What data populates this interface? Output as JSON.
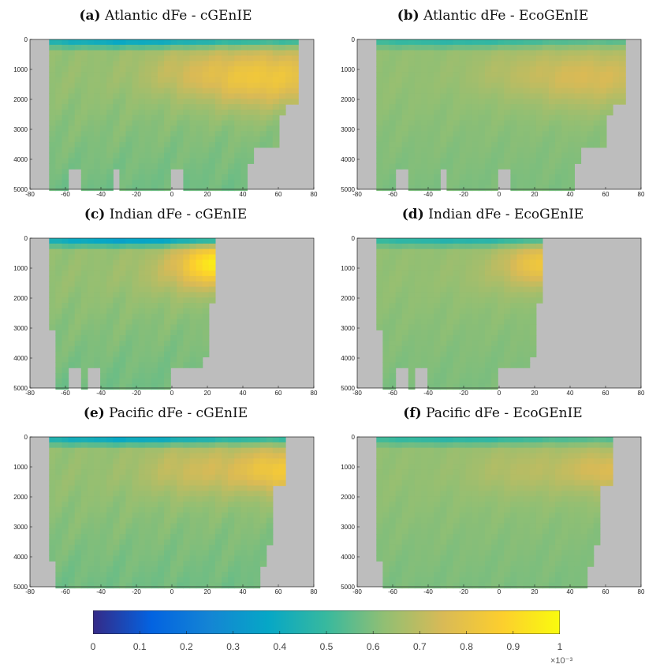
{
  "colormap": {
    "name": "parula",
    "stops": [
      "#352a87",
      "#0363e1",
      "#1485d4",
      "#06a7c6",
      "#38b99e",
      "#92bf73",
      "#d9ba56",
      "#fcce2e",
      "#f9fb0e"
    ],
    "land_color": "#bdbdbd"
  },
  "colorbar": {
    "ticks": [
      "0",
      "0.1",
      "0.2",
      "0.3",
      "0.4",
      "0.5",
      "0.6",
      "0.7",
      "0.8",
      "0.9",
      "1"
    ],
    "exponent": "×10⁻³"
  },
  "chart_data": [
    {
      "type": "heatmap",
      "tag": "(a)",
      "title": "Atlantic dFe - cGEnIE",
      "basin": "atlantic",
      "model": "cgenie",
      "xlim": [
        -80,
        80
      ],
      "ylim": [
        5000,
        0
      ],
      "xticks": [
        "-80",
        "-60",
        "-40",
        "-20",
        "0",
        "20",
        "40",
        "60",
        "80"
      ],
      "yticks": [
        "0",
        "1000",
        "2000",
        "3000",
        "4000",
        "5000"
      ],
      "value_range": [
        0,
        0.001
      ]
    },
    {
      "type": "heatmap",
      "tag": "(b)",
      "title": "Atlantic dFe - EcoGEnIE",
      "basin": "atlantic",
      "model": "ecogenie",
      "xlim": [
        -80,
        80
      ],
      "ylim": [
        5000,
        0
      ],
      "xticks": [
        "-80",
        "-60",
        "-40",
        "-20",
        "0",
        "20",
        "40",
        "60",
        "80"
      ],
      "yticks": [
        "0",
        "1000",
        "2000",
        "3000",
        "4000",
        "5000"
      ],
      "value_range": [
        0,
        0.001
      ]
    },
    {
      "type": "heatmap",
      "tag": "(c)",
      "title": "Indian dFe - cGEnIE",
      "basin": "indian",
      "model": "cgenie",
      "xlim": [
        -80,
        80
      ],
      "ylim": [
        5000,
        0
      ],
      "xticks": [
        "-80",
        "-60",
        "-40",
        "-20",
        "0",
        "20",
        "40",
        "60",
        "80"
      ],
      "yticks": [
        "0",
        "1000",
        "2000",
        "3000",
        "4000",
        "5000"
      ],
      "value_range": [
        0,
        0.001
      ]
    },
    {
      "type": "heatmap",
      "tag": "(d)",
      "title": "Indian dFe - EcoGEnIE",
      "basin": "indian",
      "model": "ecogenie",
      "xlim": [
        -80,
        80
      ],
      "ylim": [
        5000,
        0
      ],
      "xticks": [
        "-80",
        "-60",
        "-40",
        "-20",
        "0",
        "20",
        "40",
        "60",
        "80"
      ],
      "yticks": [
        "0",
        "1000",
        "2000",
        "3000",
        "4000",
        "5000"
      ],
      "value_range": [
        0,
        0.001
      ]
    },
    {
      "type": "heatmap",
      "tag": "(e)",
      "title": "Pacific dFe - cGEnIE",
      "basin": "pacific",
      "model": "cgenie",
      "xlim": [
        -80,
        80
      ],
      "ylim": [
        5000,
        0
      ],
      "xticks": [
        "-80",
        "-60",
        "-40",
        "-20",
        "0",
        "20",
        "40",
        "60",
        "80"
      ],
      "yticks": [
        "0",
        "1000",
        "2000",
        "3000",
        "4000",
        "5000"
      ],
      "value_range": [
        0,
        0.001
      ]
    },
    {
      "type": "heatmap",
      "tag": "(f)",
      "title": "Pacific dFe - EcoGEnIE",
      "basin": "pacific",
      "model": "ecogenie",
      "xlim": [
        -80,
        80
      ],
      "ylim": [
        5000,
        0
      ],
      "xticks": [
        "-80",
        "-60",
        "-40",
        "-20",
        "0",
        "20",
        "40",
        "60",
        "80"
      ],
      "yticks": [
        "0",
        "1000",
        "2000",
        "3000",
        "4000",
        "5000"
      ],
      "value_range": [
        0,
        0.001
      ]
    }
  ]
}
